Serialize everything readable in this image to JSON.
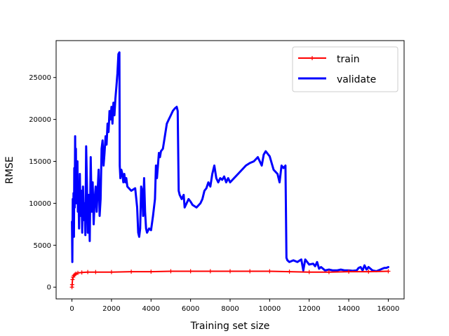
{
  "chart_data": {
    "type": "line",
    "title": "",
    "xlabel": "Training set size",
    "ylabel": "RMSE",
    "xlim": [
      -800,
      16800
    ],
    "ylim": [
      -1400,
      29400
    ],
    "xticks": [
      0,
      2000,
      4000,
      6000,
      8000,
      10000,
      12000,
      14000,
      16000
    ],
    "yticks": [
      0,
      5000,
      10000,
      15000,
      20000,
      25000
    ],
    "grid": false,
    "legend_position": "top-right",
    "series": [
      {
        "name": "train",
        "color": "#ff0000",
        "line_width": 2,
        "marker": "plus",
        "points": [
          [
            1,
            0
          ],
          [
            10,
            300
          ],
          [
            30,
            900
          ],
          [
            60,
            1200
          ],
          [
            100,
            1400
          ],
          [
            150,
            1500
          ],
          [
            200,
            1600
          ],
          [
            300,
            1700
          ],
          [
            500,
            1750
          ],
          [
            800,
            1800
          ],
          [
            1200,
            1800
          ],
          [
            2000,
            1800
          ],
          [
            3000,
            1850
          ],
          [
            4000,
            1850
          ],
          [
            5000,
            1900
          ],
          [
            6000,
            1900
          ],
          [
            7000,
            1900
          ],
          [
            8000,
            1900
          ],
          [
            9000,
            1900
          ],
          [
            10000,
            1900
          ],
          [
            11000,
            1850
          ],
          [
            12000,
            1800
          ],
          [
            13000,
            1800
          ],
          [
            14000,
            1850
          ],
          [
            15000,
            1850
          ],
          [
            16000,
            1900
          ]
        ]
      },
      {
        "name": "validate",
        "color": "#0000ff",
        "line_width": 3,
        "marker": "none",
        "points": [
          [
            1,
            7800
          ],
          [
            20,
            3000
          ],
          [
            40,
            10500
          ],
          [
            60,
            7000
          ],
          [
            80,
            11200
          ],
          [
            100,
            6000
          ],
          [
            120,
            14200
          ],
          [
            140,
            9500
          ],
          [
            160,
            18000
          ],
          [
            180,
            11500
          ],
          [
            200,
            16500
          ],
          [
            220,
            10000
          ],
          [
            250,
            12500
          ],
          [
            280,
            15000
          ],
          [
            300,
            9000
          ],
          [
            330,
            12000
          ],
          [
            360,
            7000
          ],
          [
            400,
            13500
          ],
          [
            440,
            8500
          ],
          [
            480,
            11500
          ],
          [
            520,
            6500
          ],
          [
            560,
            12000
          ],
          [
            600,
            8000
          ],
          [
            640,
            10000
          ],
          [
            680,
            6200
          ],
          [
            720,
            16800
          ],
          [
            760,
            12000
          ],
          [
            800,
            6500
          ],
          [
            850,
            11000
          ],
          [
            900,
            5500
          ],
          [
            950,
            15500
          ],
          [
            1000,
            9000
          ],
          [
            1050,
            12500
          ],
          [
            1100,
            7500
          ],
          [
            1150,
            10500
          ],
          [
            1200,
            12000
          ],
          [
            1250,
            9000
          ],
          [
            1300,
            11500
          ],
          [
            1350,
            14000
          ],
          [
            1400,
            8500
          ],
          [
            1450,
            10500
          ],
          [
            1500,
            16500
          ],
          [
            1550,
            17500
          ],
          [
            1600,
            14500
          ],
          [
            1650,
            16000
          ],
          [
            1700,
            18000
          ],
          [
            1750,
            17000
          ],
          [
            1800,
            19500
          ],
          [
            1850,
            18500
          ],
          [
            1900,
            21000
          ],
          [
            1950,
            20000
          ],
          [
            2000,
            21500
          ],
          [
            2050,
            19500
          ],
          [
            2100,
            22000
          ],
          [
            2150,
            20500
          ],
          [
            2200,
            22500
          ],
          [
            2250,
            24000
          ],
          [
            2300,
            25500
          ],
          [
            2350,
            27800
          ],
          [
            2400,
            28000
          ],
          [
            2420,
            14500
          ],
          [
            2450,
            13000
          ],
          [
            2500,
            14000
          ],
          [
            2550,
            13500
          ],
          [
            2600,
            12500
          ],
          [
            2650,
            13500
          ],
          [
            2700,
            12500
          ],
          [
            2750,
            13000
          ],
          [
            2800,
            12000
          ],
          [
            3000,
            11500
          ],
          [
            3200,
            11800
          ],
          [
            3300,
            9500
          ],
          [
            3350,
            6500
          ],
          [
            3400,
            6000
          ],
          [
            3450,
            7000
          ],
          [
            3500,
            12000
          ],
          [
            3550,
            11500
          ],
          [
            3600,
            8500
          ],
          [
            3650,
            13000
          ],
          [
            3700,
            9000
          ],
          [
            3750,
            7000
          ],
          [
            3800,
            6500
          ],
          [
            3900,
            7000
          ],
          [
            4000,
            6800
          ],
          [
            4100,
            8500
          ],
          [
            4200,
            10500
          ],
          [
            4250,
            14500
          ],
          [
            4300,
            13000
          ],
          [
            4350,
            14500
          ],
          [
            4400,
            16000
          ],
          [
            4450,
            15500
          ],
          [
            4500,
            16200
          ],
          [
            4600,
            16500
          ],
          [
            4700,
            18000
          ],
          [
            4800,
            19500
          ],
          [
            4900,
            20000
          ],
          [
            5000,
            20500
          ],
          [
            5100,
            21000
          ],
          [
            5200,
            21300
          ],
          [
            5300,
            21500
          ],
          [
            5350,
            21000
          ],
          [
            5400,
            11500
          ],
          [
            5450,
            11000
          ],
          [
            5550,
            10500
          ],
          [
            5650,
            11000
          ],
          [
            5700,
            9500
          ],
          [
            5800,
            10000
          ],
          [
            5900,
            10500
          ],
          [
            6000,
            10200
          ],
          [
            6100,
            9800
          ],
          [
            6300,
            9500
          ],
          [
            6500,
            10000
          ],
          [
            6600,
            10500
          ],
          [
            6700,
            11500
          ],
          [
            6800,
            11800
          ],
          [
            6900,
            12500
          ],
          [
            7000,
            12000
          ],
          [
            7100,
            13500
          ],
          [
            7200,
            14500
          ],
          [
            7300,
            13000
          ],
          [
            7400,
            12500
          ],
          [
            7500,
            13000
          ],
          [
            7600,
            12800
          ],
          [
            7700,
            13200
          ],
          [
            7800,
            12500
          ],
          [
            7900,
            13000
          ],
          [
            8000,
            12500
          ],
          [
            8200,
            13000
          ],
          [
            8400,
            13500
          ],
          [
            8600,
            14000
          ],
          [
            8800,
            14500
          ],
          [
            9000,
            14800
          ],
          [
            9200,
            15000
          ],
          [
            9400,
            15500
          ],
          [
            9600,
            14500
          ],
          [
            9700,
            15800
          ],
          [
            9800,
            16200
          ],
          [
            10000,
            15600
          ],
          [
            10200,
            14000
          ],
          [
            10400,
            13500
          ],
          [
            10500,
            12500
          ],
          [
            10600,
            14500
          ],
          [
            10700,
            14200
          ],
          [
            10800,
            14500
          ],
          [
            10850,
            3500
          ],
          [
            10900,
            3200
          ],
          [
            11000,
            3000
          ],
          [
            11200,
            3200
          ],
          [
            11400,
            3000
          ],
          [
            11600,
            3300
          ],
          [
            11700,
            2000
          ],
          [
            11800,
            3300
          ],
          [
            12000,
            2700
          ],
          [
            12200,
            2800
          ],
          [
            12300,
            2500
          ],
          [
            12400,
            3000
          ],
          [
            12500,
            2200
          ],
          [
            12600,
            2400
          ],
          [
            12800,
            2000
          ],
          [
            13000,
            2100
          ],
          [
            13200,
            2000
          ],
          [
            13400,
            2000
          ],
          [
            13600,
            2100
          ],
          [
            13800,
            2000
          ],
          [
            14000,
            2000
          ],
          [
            14200,
            1950
          ],
          [
            14400,
            2000
          ],
          [
            14500,
            2300
          ],
          [
            14600,
            2400
          ],
          [
            14700,
            2000
          ],
          [
            14800,
            2600
          ],
          [
            14900,
            2100
          ],
          [
            15000,
            2400
          ],
          [
            15100,
            2200
          ],
          [
            15200,
            2000
          ],
          [
            15400,
            1900
          ],
          [
            15600,
            2100
          ],
          [
            15700,
            2200
          ],
          [
            15800,
            2300
          ],
          [
            15900,
            2300
          ],
          [
            16000,
            2400
          ]
        ]
      }
    ]
  }
}
